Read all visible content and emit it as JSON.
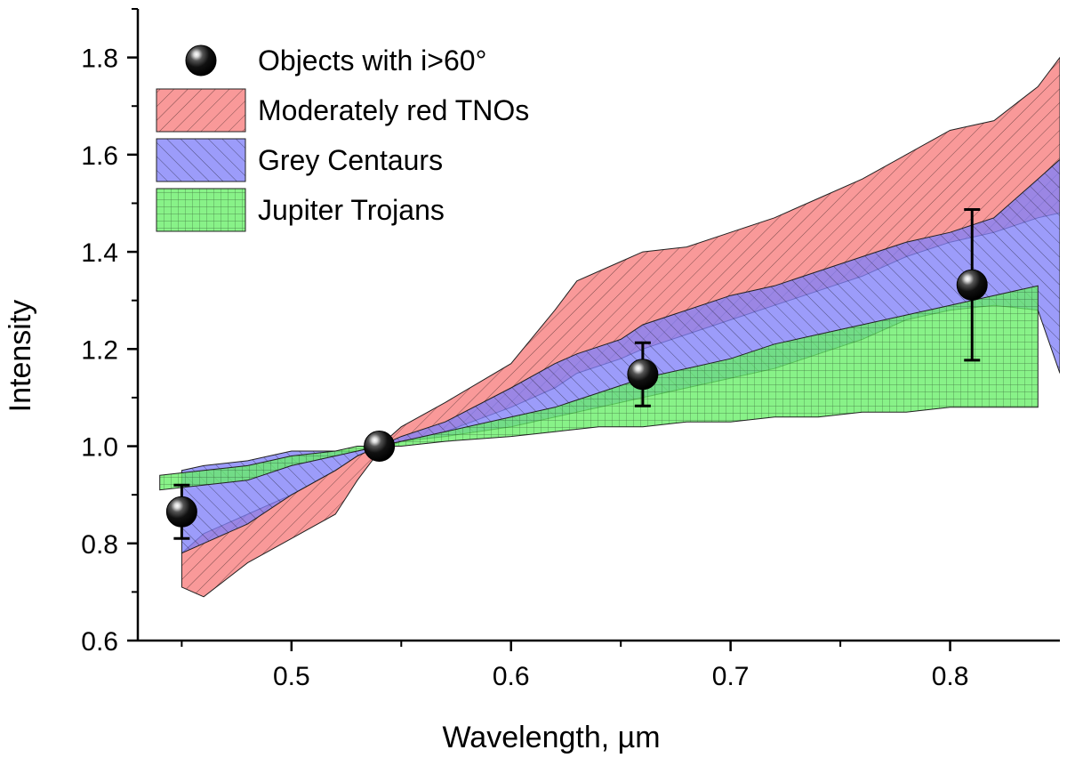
{
  "chart_data": {
    "type": "area",
    "title": "",
    "xlabel": "Wavelength, µm",
    "ylabel": "Intensity",
    "xlim": [
      0.43,
      0.85
    ],
    "ylim": [
      0.6,
      1.9
    ],
    "x_ticks": [
      0.5,
      0.6,
      0.7,
      0.8
    ],
    "y_ticks": [
      0.6,
      0.8,
      1.0,
      1.2,
      1.4,
      1.6,
      1.8
    ],
    "x_tick_labels": [
      "0.5",
      "0.6",
      "0.7",
      "0.8"
    ],
    "y_tick_labels": [
      "0.6",
      "0.8",
      "1.0",
      "1.2",
      "1.4",
      "1.6",
      "1.8"
    ],
    "legend_position": "top-left",
    "bands": [
      {
        "name": "Moderately red TNOs",
        "color": "#f77c7c",
        "hatch": "diagonal-right",
        "x": [
          0.45,
          0.46,
          0.48,
          0.5,
          0.52,
          0.53,
          0.54,
          0.55,
          0.57,
          0.6,
          0.62,
          0.63,
          0.65,
          0.66,
          0.68,
          0.7,
          0.72,
          0.74,
          0.76,
          0.78,
          0.8,
          0.82,
          0.84,
          0.85
        ],
        "upper": [
          0.78,
          0.82,
          0.86,
          0.9,
          0.95,
          0.98,
          1.0,
          1.04,
          1.09,
          1.17,
          1.28,
          1.34,
          1.38,
          1.4,
          1.41,
          1.44,
          1.47,
          1.51,
          1.55,
          1.6,
          1.65,
          1.67,
          1.74,
          1.8
        ],
        "lower": [
          0.71,
          0.69,
          0.76,
          0.81,
          0.86,
          0.93,
          0.99,
          1.01,
          1.03,
          1.08,
          1.12,
          1.15,
          1.18,
          1.2,
          1.23,
          1.26,
          1.29,
          1.32,
          1.35,
          1.39,
          1.42,
          1.44,
          1.47,
          1.48
        ]
      },
      {
        "name": "Grey Centaurs",
        "color": "#8080f8",
        "hatch": "diagonal-left",
        "x": [
          0.45,
          0.46,
          0.48,
          0.5,
          0.52,
          0.53,
          0.54,
          0.55,
          0.57,
          0.6,
          0.62,
          0.63,
          0.65,
          0.66,
          0.68,
          0.7,
          0.72,
          0.74,
          0.76,
          0.78,
          0.8,
          0.82,
          0.84,
          0.85
        ],
        "upper": [
          0.95,
          0.96,
          0.97,
          0.99,
          0.99,
          0.99,
          1.0,
          1.02,
          1.05,
          1.12,
          1.17,
          1.19,
          1.22,
          1.25,
          1.28,
          1.31,
          1.33,
          1.36,
          1.39,
          1.42,
          1.44,
          1.47,
          1.55,
          1.59
        ],
        "lower": [
          0.78,
          0.8,
          0.84,
          0.9,
          0.95,
          0.98,
          1.0,
          1.01,
          1.02,
          1.04,
          1.06,
          1.07,
          1.09,
          1.1,
          1.12,
          1.14,
          1.16,
          1.19,
          1.22,
          1.26,
          1.28,
          1.29,
          1.28,
          1.15
        ]
      },
      {
        "name": "Jupiter Trojans",
        "color": "#66ee66",
        "hatch": "grid",
        "x": [
          0.44,
          0.46,
          0.48,
          0.5,
          0.52,
          0.53,
          0.54,
          0.55,
          0.57,
          0.6,
          0.62,
          0.64,
          0.66,
          0.68,
          0.7,
          0.72,
          0.74,
          0.76,
          0.78,
          0.8,
          0.82,
          0.84
        ],
        "upper": [
          0.94,
          0.95,
          0.96,
          0.98,
          0.99,
          1.0,
          1.0,
          1.01,
          1.03,
          1.06,
          1.08,
          1.11,
          1.14,
          1.16,
          1.18,
          1.21,
          1.23,
          1.25,
          1.27,
          1.29,
          1.31,
          1.33
        ],
        "lower": [
          0.91,
          0.92,
          0.93,
          0.96,
          0.98,
          0.99,
          1.0,
          1.0,
          1.01,
          1.02,
          1.03,
          1.04,
          1.04,
          1.05,
          1.05,
          1.06,
          1.06,
          1.07,
          1.07,
          1.08,
          1.08,
          1.08
        ]
      }
    ],
    "series": [
      {
        "name": "Objects with i>60°",
        "marker": "black-sphere",
        "x": [
          0.45,
          0.54,
          0.66,
          0.81
        ],
        "values": [
          0.865,
          1.0,
          1.148,
          1.332
        ],
        "err_upper": [
          0.055,
          0.0,
          0.065,
          0.155
        ],
        "err_lower": [
          0.055,
          0.0,
          0.065,
          0.155
        ]
      }
    ],
    "legend": [
      {
        "label": "Objects with i>60°",
        "kind": "marker"
      },
      {
        "label": "Moderately red TNOs",
        "kind": "band",
        "color": "#f77c7c",
        "hatch": "diagonal-right"
      },
      {
        "label": "Grey Centaurs",
        "kind": "band",
        "color": "#8080f8",
        "hatch": "diagonal-left"
      },
      {
        "label": "Jupiter Trojans",
        "kind": "band",
        "color": "#66ee66",
        "hatch": "grid"
      }
    ]
  }
}
